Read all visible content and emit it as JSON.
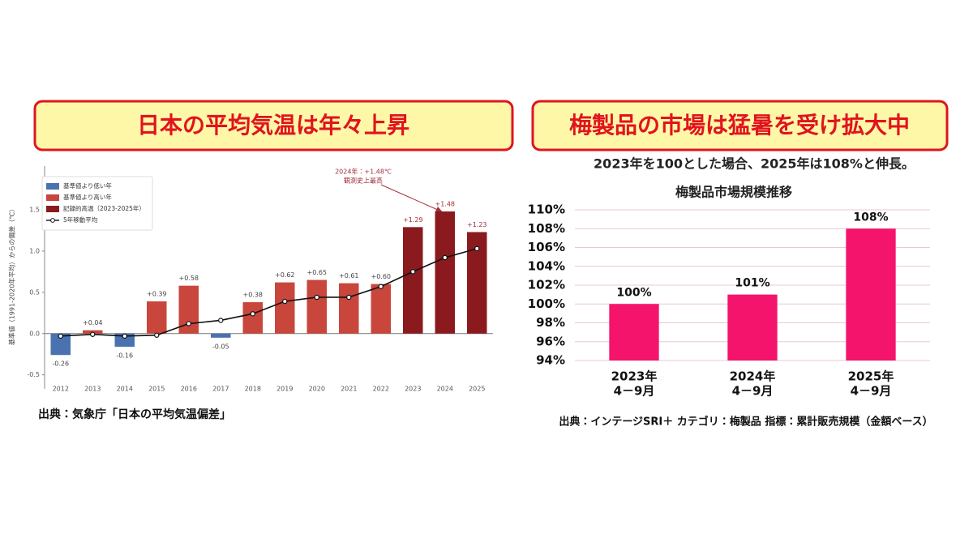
{
  "chart_data": [
    {
      "type": "bar",
      "headline": "日本の平均気温は年々上昇",
      "y_label": "基準値（1991-2020年平均）からの偏差（℃）",
      "annotation": [
        "2024年：+1.48℃",
        "観測史上最高"
      ],
      "source": "出典：気象庁「日本の平均気温偏差」",
      "categories": [
        "2012",
        "2013",
        "2014",
        "2015",
        "2016",
        "2017",
        "2018",
        "2019",
        "2020",
        "2021",
        "2022",
        "2023",
        "2024",
        "2025"
      ],
      "series": [
        {
          "name": "基準値より低い年",
          "color": "#4a72b0",
          "values": [
            -0.26,
            null,
            -0.16,
            null,
            null,
            -0.05,
            null,
            null,
            null,
            null,
            null,
            null,
            null,
            null
          ],
          "value_labels": [
            "-0.26",
            null,
            "-0.16",
            null,
            null,
            "-0.05",
            null,
            null,
            null,
            null,
            null,
            null,
            null,
            null
          ]
        },
        {
          "name": "基準値より高い年",
          "color": "#c9463d",
          "values": [
            null,
            0.04,
            null,
            0.39,
            0.58,
            null,
            0.38,
            0.62,
            0.65,
            0.61,
            0.6,
            null,
            null,
            null
          ],
          "value_labels": [
            null,
            "+0.04",
            null,
            "+0.39",
            "+0.58",
            null,
            "+0.38",
            "+0.62",
            "+0.65",
            "+0.61",
            "+0.60",
            null,
            null,
            null
          ]
        },
        {
          "name": "記録的高温（2023-2025年）",
          "color": "#8b1a1f",
          "values": [
            null,
            null,
            null,
            null,
            null,
            null,
            null,
            null,
            null,
            null,
            null,
            1.29,
            1.48,
            1.23
          ],
          "value_labels": [
            null,
            null,
            null,
            null,
            null,
            null,
            null,
            null,
            null,
            null,
            null,
            "+1.29",
            "+1.48",
            "+1.23"
          ]
        },
        {
          "name": "5年移動平均",
          "color": "#111111",
          "type": "line",
          "values": [
            -0.03,
            -0.01,
            -0.03,
            -0.02,
            0.12,
            0.16,
            0.24,
            0.39,
            0.44,
            0.44,
            0.57,
            0.75,
            0.92,
            1.03
          ]
        }
      ],
      "ylim": [
        -0.67,
        2.03
      ],
      "yticks": [
        -0.5,
        {
          "value": 0,
          "label": "0.0"
        },
        0.5,
        {
          "value": 1,
          "label": "1.0"
        },
        1.5
      ],
      "grid": false
    },
    {
      "type": "bar",
      "headline": "梅製品の市場は猛暑を受け拡大中",
      "subtitle": "2023年を100とした場合、2025年は108%と伸長。",
      "title": "梅製品市場規模推移",
      "source": "出典：インテージSRI＋ カテゴリ：梅製品 指標：累計販売規模（金額ベース）",
      "categories": [
        "2023年",
        "2024年",
        "2025年"
      ],
      "category_sublabels": [
        "4－9月",
        "4－9月",
        "4－9月"
      ],
      "values": [
        100,
        101,
        108
      ],
      "value_labels": [
        "100%",
        "101%",
        "108%"
      ],
      "color": "#f5146b",
      "ylim": [
        94,
        110
      ],
      "yticks": [
        {
          "value": 94,
          "label": "94%"
        },
        {
          "value": 96,
          "label": "96%"
        },
        {
          "value": 98,
          "label": "98%"
        },
        {
          "value": 100,
          "label": "100%"
        },
        {
          "value": 102,
          "label": "102%"
        },
        {
          "value": 104,
          "label": "104%"
        },
        {
          "value": 106,
          "label": "106%"
        },
        {
          "value": 108,
          "label": "108%"
        },
        {
          "value": 110,
          "label": "110%"
        }
      ],
      "grid": true
    }
  ]
}
